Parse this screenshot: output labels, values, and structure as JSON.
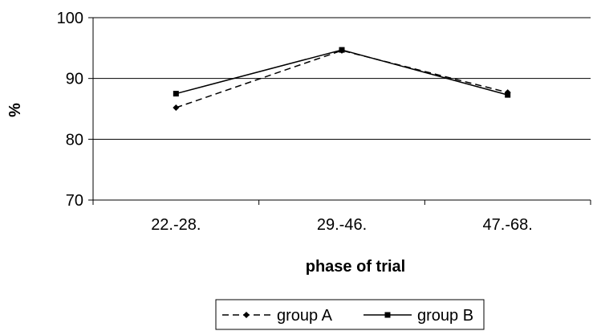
{
  "chart_data": {
    "type": "line",
    "categories": [
      "22.-28.",
      "29.-46.",
      "47.-68."
    ],
    "series": [
      {
        "name": "group A",
        "values": [
          85.2,
          94.6,
          87.7
        ],
        "line_style": "dashed",
        "marker": "diamond",
        "color": "#000000"
      },
      {
        "name": "group B",
        "values": [
          87.5,
          94.7,
          87.3
        ],
        "line_style": "solid",
        "marker": "square",
        "color": "#000000"
      }
    ],
    "xlabel": "phase of trial",
    "ylabel": "%",
    "ylim": [
      70,
      100
    ],
    "yticks": [
      "70",
      "80",
      "90",
      "100"
    ],
    "grid": true,
    "legend": "bottom"
  }
}
